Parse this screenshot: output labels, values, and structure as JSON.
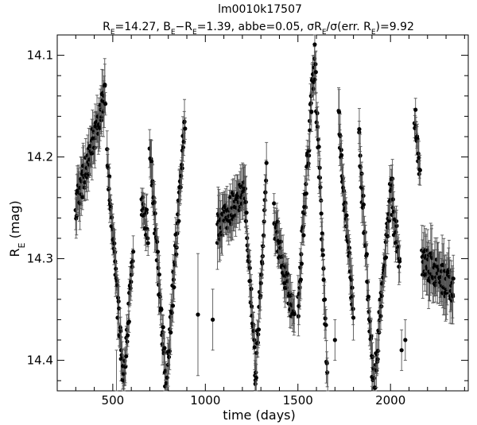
{
  "chart_data": {
    "type": "scatter",
    "title": "lm0010k17507",
    "subtitle": "R_E=14.27, B_E−R_E=1.39, abbe=0.05, σR_E/σ(err. R_E)=9.92",
    "xlabel": "time (days)",
    "ylabel": "R_E (mag)",
    "xlim": [
      200,
      2420
    ],
    "ylim": [
      14.43,
      14.08
    ],
    "inverted_y": true,
    "x_ticks": [
      500,
      1000,
      1500,
      2000
    ],
    "y_ticks": [
      14.1,
      14.2,
      14.3,
      14.4
    ],
    "grid": false,
    "legend": "none",
    "marker": "filled-circle-with-error-bars",
    "color": "#000000",
    "segments": [
      {
        "x0": 300,
        "x1": 460,
        "y0": 14.25,
        "y1": 14.14,
        "yerr": 0.018
      },
      {
        "x0": 470,
        "x1": 560,
        "y0": 14.2,
        "y1": 14.43,
        "yerr": 0.015
      },
      {
        "x0": 560,
        "x1": 610,
        "y0": 14.42,
        "y1": 14.29,
        "yerr": 0.013
      },
      {
        "x0": 655,
        "x1": 690,
        "y0": 14.25,
        "y1": 14.27,
        "yerr": 0.012
      },
      {
        "x0": 700,
        "x1": 790,
        "y0": 14.19,
        "y1": 14.43,
        "yerr": 0.015
      },
      {
        "x0": 795,
        "x1": 890,
        "y0": 14.41,
        "y1": 14.16,
        "yerr": 0.015
      },
      {
        "x0": 1065,
        "x1": 1220,
        "y0": 14.27,
        "y1": 14.23,
        "yerr": 0.018
      },
      {
        "x0": 1220,
        "x1": 1270,
        "y0": 14.26,
        "y1": 14.41,
        "yerr": 0.015
      },
      {
        "x0": 1270,
        "x1": 1330,
        "y0": 14.42,
        "y1": 14.21,
        "yerr": 0.014
      },
      {
        "x0": 1370,
        "x1": 1480,
        "y0": 14.26,
        "y1": 14.36,
        "yerr": 0.015
      },
      {
        "x0": 1500,
        "x1": 1590,
        "y0": 14.35,
        "y1": 14.1,
        "yerr": 0.014
      },
      {
        "x0": 1590,
        "x1": 1660,
        "y0": 14.1,
        "y1": 14.42,
        "yerr": 0.014
      },
      {
        "x0": 1720,
        "x1": 1800,
        "y0": 14.16,
        "y1": 14.36,
        "yerr": 0.016
      },
      {
        "x0": 1830,
        "x1": 1910,
        "y0": 14.18,
        "y1": 14.43,
        "yerr": 0.014
      },
      {
        "x0": 1910,
        "x1": 2010,
        "y0": 14.43,
        "y1": 14.21,
        "yerr": 0.014
      },
      {
        "x0": 2010,
        "x1": 2050,
        "y0": 14.25,
        "y1": 14.3,
        "yerr": 0.014
      },
      {
        "x0": 2130,
        "x1": 2160,
        "y0": 14.16,
        "y1": 14.21,
        "yerr": 0.012
      },
      {
        "x0": 2170,
        "x1": 2340,
        "y0": 14.3,
        "y1": 14.33,
        "yerr": 0.02
      }
    ],
    "isolated_points": [
      {
        "x": 960,
        "y": 14.355,
        "yerr": 0.06
      },
      {
        "x": 1040,
        "y": 14.36,
        "yerr": 0.03
      },
      {
        "x": 2060,
        "y": 14.39,
        "yerr": 0.02
      },
      {
        "x": 2080,
        "y": 14.38,
        "yerr": 0.02
      },
      {
        "x": 1700,
        "y": 14.38,
        "yerr": 0.02
      },
      {
        "x": 520,
        "y": 14.44,
        "yerr": 0.05
      }
    ]
  }
}
